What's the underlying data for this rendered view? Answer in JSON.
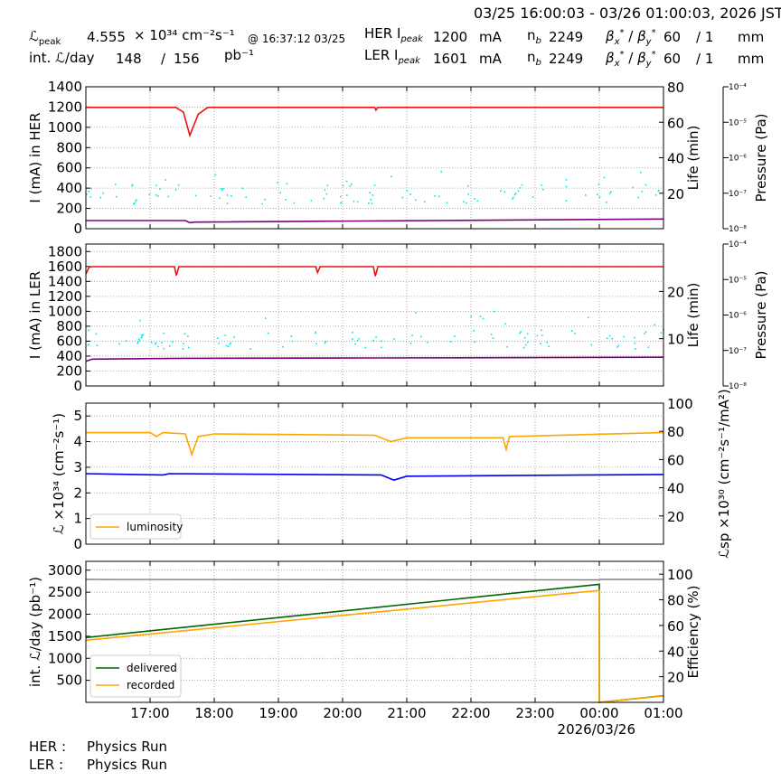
{
  "header": {
    "time_range": "03/25 16:00:03 - 03/26 01:00:03, 2026 JST",
    "lum_peak_label": "ℒpeak",
    "lum_peak_value": "4.555",
    "lum_peak_exp": "× 10³⁴ cm⁻²s⁻¹",
    "lum_peak_at": "@ 16:37:12 03/25",
    "int_label": "int. ℒ/day",
    "int_recorded": "148",
    "int_sep": "/",
    "int_delivered": "156",
    "int_unit": "pb⁻¹",
    "her_label": "HER Ipeak",
    "her_peak": "1200",
    "ler_label": "LER Ipeak",
    "ler_peak": "1601",
    "current_unit": "mA",
    "nb_label": "nb",
    "her_nb": "2249",
    "ler_nb": "2249",
    "beta_label": "βx* / βy*",
    "her_beta_x": "60",
    "her_beta_y": "/ 1",
    "ler_beta_x": "60",
    "ler_beta_y": "/ 1",
    "beta_unit": "mm"
  },
  "footer": {
    "her_label": "HER :",
    "her_status": "Physics Run",
    "ler_label": "LER :",
    "ler_status": "Physics Run"
  },
  "colors": {
    "current": "#ee1111",
    "life": "#00e6e6",
    "pressure": "#800080",
    "luminosity": "#ffa500",
    "specific": "#0000ee",
    "delivered": "#006400",
    "recorded": "#ffa500",
    "efficiency": "#808080"
  },
  "chart_data": [
    {
      "type": "line",
      "panel": "her",
      "ylabel": "I (mA) in HER",
      "ylim": [
        0,
        1400
      ],
      "yticks": [
        0,
        200,
        400,
        600,
        800,
        1000,
        1200,
        1400
      ],
      "y2label": "Life (min)",
      "y2lim": [
        0,
        80
      ],
      "y2ticks": [
        20,
        40,
        60,
        80
      ],
      "y3label": "Pressure (Pa)",
      "y3ticks": [
        "10⁻⁸",
        "10⁻⁷",
        "10⁻⁶",
        "10⁻⁵",
        "10⁻⁴"
      ],
      "grid": true,
      "series": [
        {
          "key": "current",
          "x": [
            0,
            1.4,
            1.52,
            1.62,
            1.75,
            1.9,
            4.5,
            4.52,
            4.55,
            9
          ],
          "y": [
            1197,
            1197,
            1150,
            920,
            1130,
            1197,
            1197,
            1170,
            1197,
            1197
          ]
        },
        {
          "key": "life",
          "points": "scatter",
          "base": 20,
          "spread": 6
        },
        {
          "key": "pressure",
          "x": [
            0,
            1.55,
            1.62,
            1.7,
            9
          ],
          "y": [
            80,
            80,
            60,
            65,
            95
          ]
        }
      ]
    },
    {
      "type": "line",
      "panel": "ler",
      "ylabel": "I (mA) in LER",
      "ylim": [
        0,
        1900
      ],
      "yticks": [
        0,
        200,
        400,
        600,
        800,
        1000,
        1200,
        1400,
        1600,
        1800
      ],
      "y2label": "Life (min)",
      "y2lim": [
        0,
        30
      ],
      "y2ticks": [
        10,
        20
      ],
      "y3label": "Pressure (Pa)",
      "y3ticks": [
        "10⁻⁸",
        "10⁻⁷",
        "10⁻⁶",
        "10⁻⁵",
        "10⁻⁴"
      ],
      "grid": true,
      "series": [
        {
          "key": "current",
          "x": [
            0,
            0.05,
            0.1,
            1.38,
            1.41,
            1.45,
            3.58,
            3.61,
            3.65,
            4.48,
            4.51,
            4.55,
            9
          ],
          "y": [
            1500,
            1590,
            1598,
            1598,
            1480,
            1598,
            1598,
            1520,
            1598,
            1598,
            1470,
            1598,
            1598
          ]
        },
        {
          "key": "life",
          "points": "scatter",
          "base": 10,
          "spread": 2
        },
        {
          "key": "pressure",
          "x": [
            0,
            0.1,
            1.5,
            4.5,
            9
          ],
          "y": [
            330,
            360,
            370,
            375,
            385
          ]
        }
      ]
    },
    {
      "type": "line",
      "panel": "luminosity",
      "ylabel": "ℒ ×10³⁴ (cm⁻²s⁻¹)",
      "ylim": [
        0,
        5.5
      ],
      "yticks": [
        0,
        1,
        2,
        3,
        4,
        5
      ],
      "y2label": "ℒsp ×10³⁰ (cm⁻²s⁻¹/mA²)",
      "y2lim": [
        0,
        100
      ],
      "y2ticks": [
        20,
        40,
        60,
        80,
        100
      ],
      "legend": [
        "luminosity"
      ],
      "legend_position": "lower-left",
      "grid": true,
      "series": [
        {
          "key": "luminosity",
          "name": "luminosity",
          "x": [
            0,
            1.0,
            1.1,
            1.2,
            1.55,
            1.65,
            1.75,
            2.0,
            4.5,
            4.75,
            5.0,
            6.5,
            6.55,
            6.6,
            9
          ],
          "y": [
            4.35,
            4.35,
            4.2,
            4.35,
            4.3,
            3.5,
            4.2,
            4.3,
            4.25,
            4.0,
            4.15,
            4.15,
            3.7,
            4.2,
            4.35
          ]
        },
        {
          "key": "specific",
          "x": [
            0,
            1.2,
            1.3,
            4.6,
            4.8,
            5.0,
            9
          ],
          "y": [
            2.75,
            2.7,
            2.75,
            2.7,
            2.5,
            2.65,
            2.72
          ]
        }
      ]
    },
    {
      "type": "line",
      "panel": "integrated",
      "ylabel": "int. ℒ/day (pb⁻¹)",
      "ylim": [
        0,
        3200
      ],
      "yticks": [
        500,
        1000,
        1500,
        2000,
        2500,
        3000
      ],
      "y2label": "Efficiency (%)",
      "y2lim": [
        0,
        110
      ],
      "y2ticks": [
        20,
        40,
        60,
        80,
        100
      ],
      "legend": [
        "delivered",
        "recorded"
      ],
      "legend_position": "lower-left",
      "xticks": [
        "17:00",
        "18:00",
        "19:00",
        "20:00",
        "21:00",
        "22:00",
        "23:00",
        "00:00",
        "01:00"
      ],
      "xlabel_extra": "2026/03/26",
      "grid": true,
      "series": [
        {
          "key": "delivered",
          "name": "delivered",
          "x": [
            0,
            8.0,
            8.0,
            9
          ],
          "y": [
            1470,
            2680,
            0,
            150
          ]
        },
        {
          "key": "recorded",
          "name": "recorded",
          "x": [
            0,
            8.0,
            8.0,
            9
          ],
          "y": [
            1410,
            2540,
            0,
            145
          ]
        },
        {
          "key": "efficiency",
          "x": [
            0,
            8.0,
            8.02,
            9
          ],
          "y": [
            2790,
            2780,
            2790,
            2790
          ]
        }
      ]
    }
  ]
}
